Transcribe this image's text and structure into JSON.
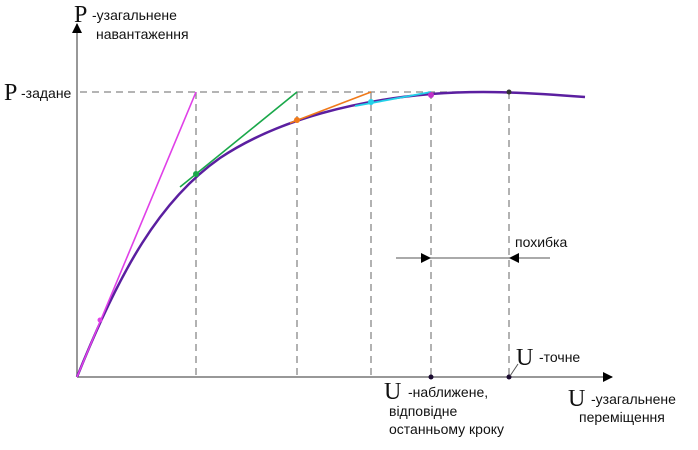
{
  "labels": {
    "p_symbol": "P",
    "p_axis_line1": "-узагальнене",
    "p_axis_line2": "навантаження",
    "p_given_symbol": "P",
    "p_given": "-задане",
    "u_approx_symbol": "U",
    "u_approx_line1": "-наближене,",
    "u_approx_line2": "відповідне",
    "u_approx_line3": "останньому кроку",
    "u_exact_symbol": "U",
    "u_exact": "-точне",
    "u_axis_symbol": "U",
    "u_axis_line1": "-узагальнене",
    "u_axis_line2": "переміщення",
    "error": "похибка"
  },
  "colors": {
    "curve": "#5b1fa0",
    "step1": "#e040e8",
    "step2": "#1aa84a",
    "step3": "#f07a1a",
    "step4": "#22d0e8",
    "axis": "#777777",
    "dashed": "#888888"
  }
}
